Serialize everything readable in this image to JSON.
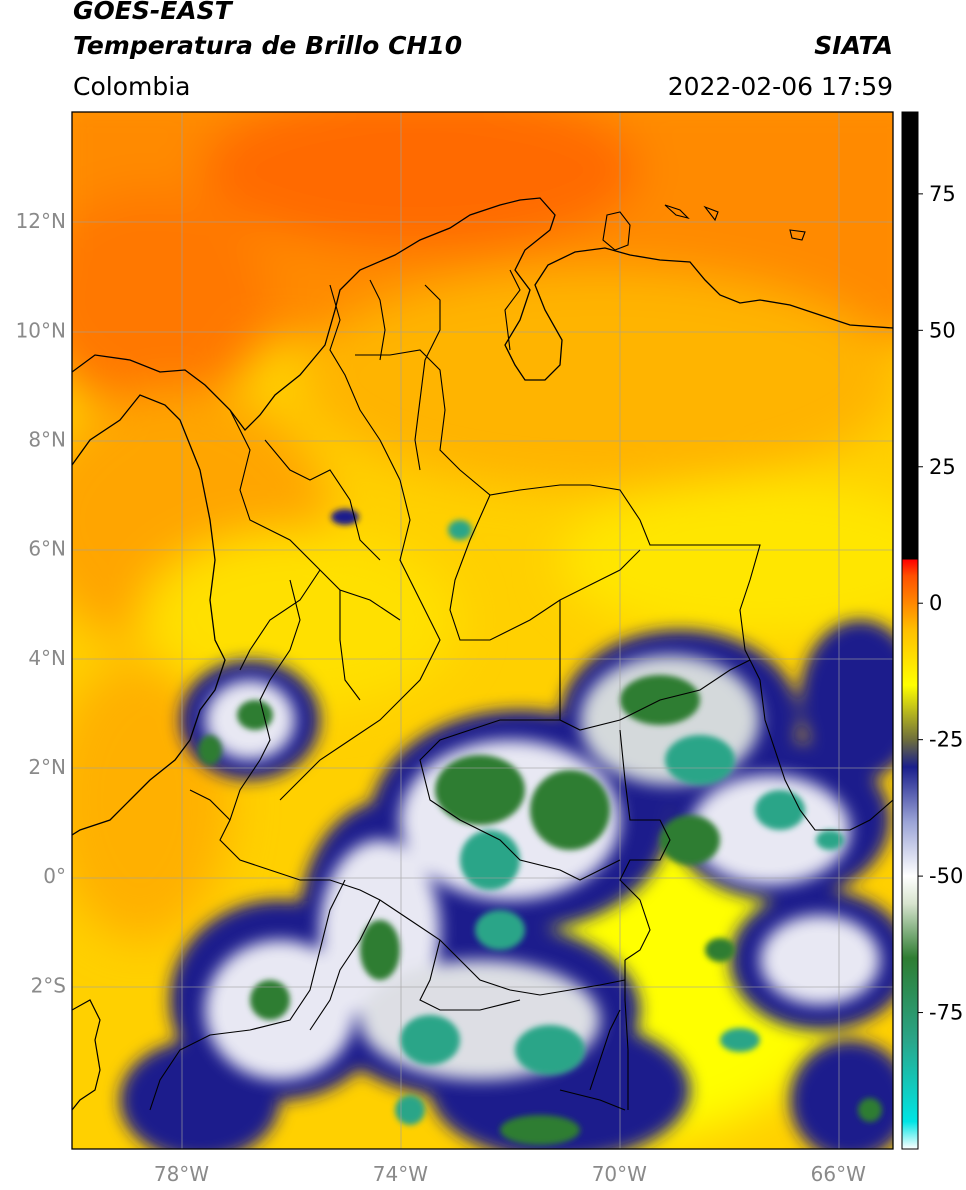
{
  "header": {
    "satellite": "GOES-EAST",
    "product": "Temperatura de Brillo CH10",
    "agency": "SIATA",
    "region": "Colombia",
    "datetime": "2022-02-06 17:59"
  },
  "map": {
    "lon_range": [
      -80,
      -65
    ],
    "lat_range": [
      -5,
      14
    ],
    "lat_ticks": [
      {
        "value": 12,
        "label": "12°N"
      },
      {
        "value": 10,
        "label": "10°N"
      },
      {
        "value": 8,
        "label": "8°N"
      },
      {
        "value": 6,
        "label": "6°N"
      },
      {
        "value": 4,
        "label": "4°N"
      },
      {
        "value": 2,
        "label": "2°N"
      },
      {
        "value": 0,
        "label": "0°"
      },
      {
        "value": -2,
        "label": "2°S"
      }
    ],
    "lon_ticks": [
      {
        "value": -78,
        "label": "78°W"
      },
      {
        "value": -74,
        "label": "74°W"
      },
      {
        "value": -70,
        "label": "70°W"
      },
      {
        "value": -66,
        "label": "66°W"
      }
    ],
    "grid": true,
    "coastline_color": "#000000",
    "boundary_color": "#000000"
  },
  "colorbar": {
    "range": [
      -100,
      90
    ],
    "ticks": [
      {
        "value": 75,
        "label": "75"
      },
      {
        "value": 50,
        "label": "50"
      },
      {
        "value": 25,
        "label": "25"
      },
      {
        "value": 0,
        "label": "0"
      },
      {
        "value": -25,
        "label": "-25"
      },
      {
        "value": -50,
        "label": "-50"
      },
      {
        "value": -75,
        "label": "-75"
      }
    ],
    "stops": [
      {
        "value": -100,
        "color": "#ffffff"
      },
      {
        "value": -95,
        "color": "#00e5e5"
      },
      {
        "value": -80,
        "color": "#2aa588"
      },
      {
        "value": -65,
        "color": "#2e7d32"
      },
      {
        "value": -55,
        "color": "#d8e4cf"
      },
      {
        "value": -50,
        "color": "#ffffff"
      },
      {
        "value": -40,
        "color": "#9aa3d6"
      },
      {
        "value": -30,
        "color": "#1a1f8c"
      },
      {
        "value": -25,
        "color": "#6e6e3c"
      },
      {
        "value": -15,
        "color": "#ffff00"
      },
      {
        "value": -5,
        "color": "#ffc000"
      },
      {
        "value": 5,
        "color": "#ff5000"
      },
      {
        "value": 8,
        "color": "#ff0000"
      },
      {
        "value": 8.01,
        "color": "#000000"
      },
      {
        "value": 90,
        "color": "#000000"
      }
    ]
  }
}
